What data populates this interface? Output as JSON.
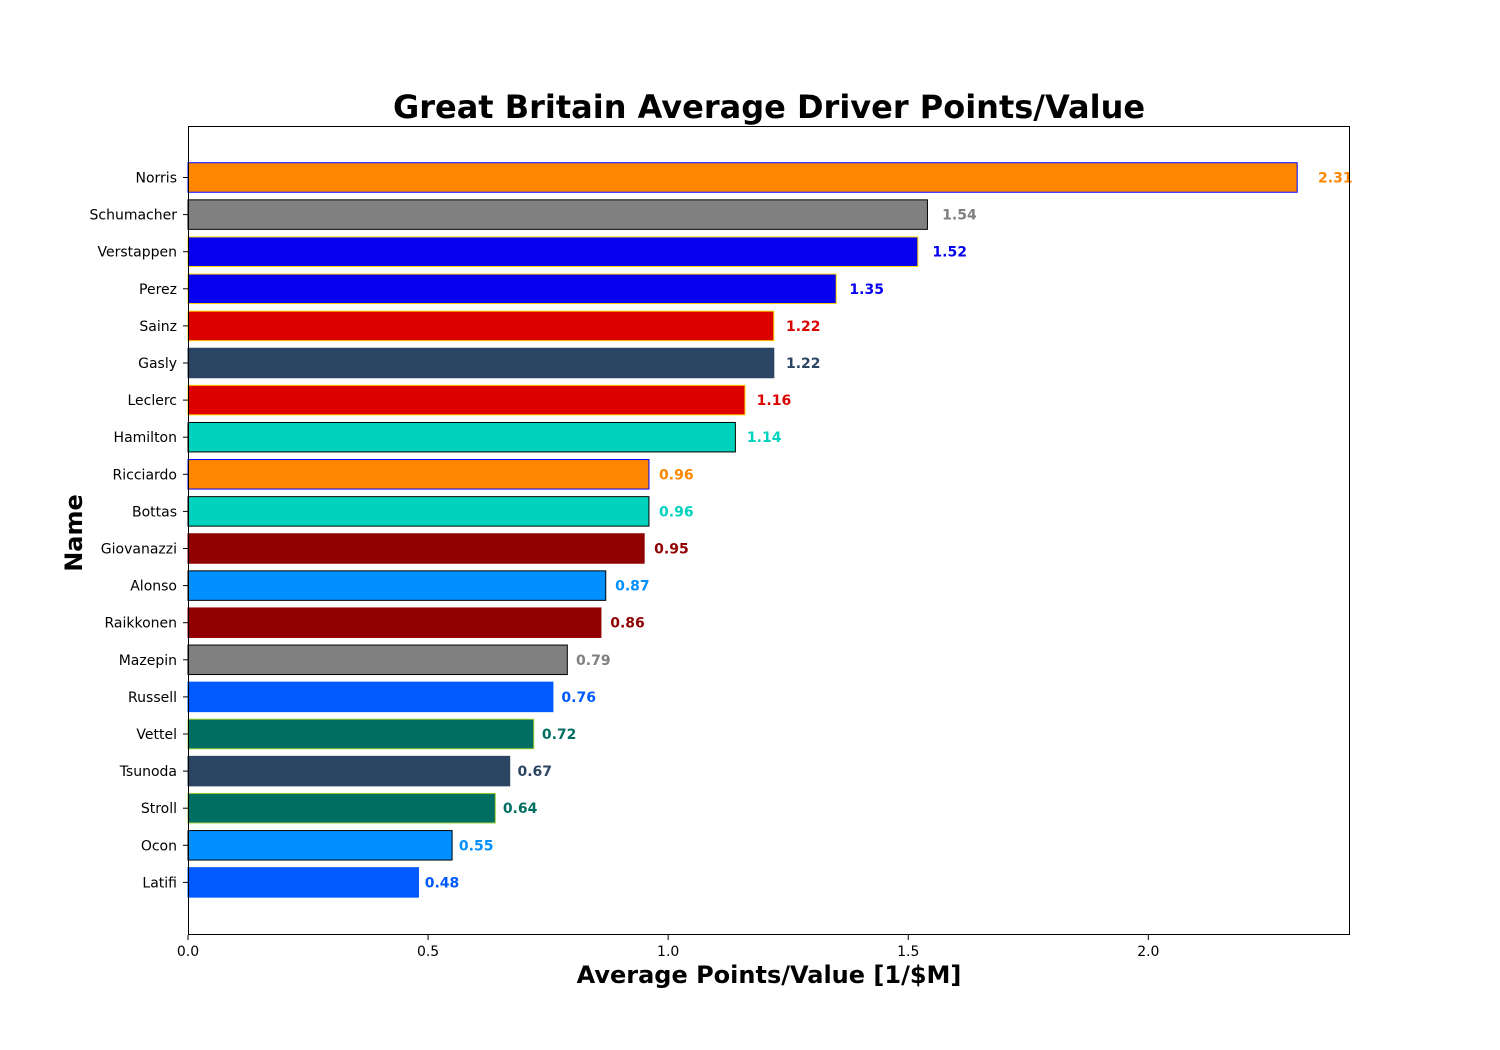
{
  "chart_data": {
    "type": "bar",
    "orientation": "horizontal",
    "title": "Great Britain Average Driver Points/Value",
    "xlabel": "Average Points/Value [1/$M]",
    "ylabel": "Name",
    "xlim": [
      0,
      2.42
    ],
    "xticks": [
      {
        "value": 0.0,
        "label": "0.0"
      },
      {
        "value": 0.5,
        "label": "0.5"
      },
      {
        "value": 1.0,
        "label": "1.0"
      },
      {
        "value": 1.5,
        "label": "1.5"
      },
      {
        "value": 2.0,
        "label": "2.0"
      }
    ],
    "grid": false,
    "bars": [
      {
        "name": "Norris",
        "value": 2.31,
        "label": "2.31",
        "fill": "#FF8700",
        "edge": "#0000FF"
      },
      {
        "name": "Schumacher",
        "value": 1.54,
        "label": "1.54",
        "fill": "#808080",
        "edge": "#000000"
      },
      {
        "name": "Verstappen",
        "value": 1.52,
        "label": "1.52",
        "fill": "#0600EF",
        "edge": "#FFD700"
      },
      {
        "name": "Perez",
        "value": 1.35,
        "label": "1.35",
        "fill": "#0600EF",
        "edge": "#FFD700"
      },
      {
        "name": "Sainz",
        "value": 1.22,
        "label": "1.22",
        "fill": "#DC0000",
        "edge": "#FFD700"
      },
      {
        "name": "Gasly",
        "value": 1.22,
        "label": "1.22",
        "fill": "#2B4562",
        "edge": "#2B4562"
      },
      {
        "name": "Leclerc",
        "value": 1.16,
        "label": "1.16",
        "fill": "#DC0000",
        "edge": "#FFD700"
      },
      {
        "name": "Hamilton",
        "value": 1.14,
        "label": "1.14",
        "fill": "#00D2BE",
        "edge": "#000000"
      },
      {
        "name": "Ricciardo",
        "value": 0.96,
        "label": "0.96",
        "fill": "#FF8700",
        "edge": "#0000FF"
      },
      {
        "name": "Bottas",
        "value": 0.96,
        "label": "0.96",
        "fill": "#00D2BE",
        "edge": "#000000"
      },
      {
        "name": "Giovanazzi",
        "value": 0.95,
        "label": "0.95",
        "fill": "#900000",
        "edge": "#900000"
      },
      {
        "name": "Alonso",
        "value": 0.87,
        "label": "0.87",
        "fill": "#0090FF",
        "edge": "#000000"
      },
      {
        "name": "Raikkonen",
        "value": 0.86,
        "label": "0.86",
        "fill": "#900000",
        "edge": "#900000"
      },
      {
        "name": "Mazepin",
        "value": 0.79,
        "label": "0.79",
        "fill": "#808080",
        "edge": "#000000"
      },
      {
        "name": "Russell",
        "value": 0.76,
        "label": "0.76",
        "fill": "#005AFF",
        "edge": "#005AFF"
      },
      {
        "name": "Vettel",
        "value": 0.72,
        "label": "0.72",
        "fill": "#006F62",
        "edge": "#9ACD32"
      },
      {
        "name": "Tsunoda",
        "value": 0.67,
        "label": "0.67",
        "fill": "#2B4562",
        "edge": "#2B4562"
      },
      {
        "name": "Stroll",
        "value": 0.64,
        "label": "0.64",
        "fill": "#006F62",
        "edge": "#9ACD32"
      },
      {
        "name": "Ocon",
        "value": 0.55,
        "label": "0.55",
        "fill": "#0090FF",
        "edge": "#000000"
      },
      {
        "name": "Latifi",
        "value": 0.48,
        "label": "0.48",
        "fill": "#005AFF",
        "edge": "#005AFF"
      }
    ]
  }
}
